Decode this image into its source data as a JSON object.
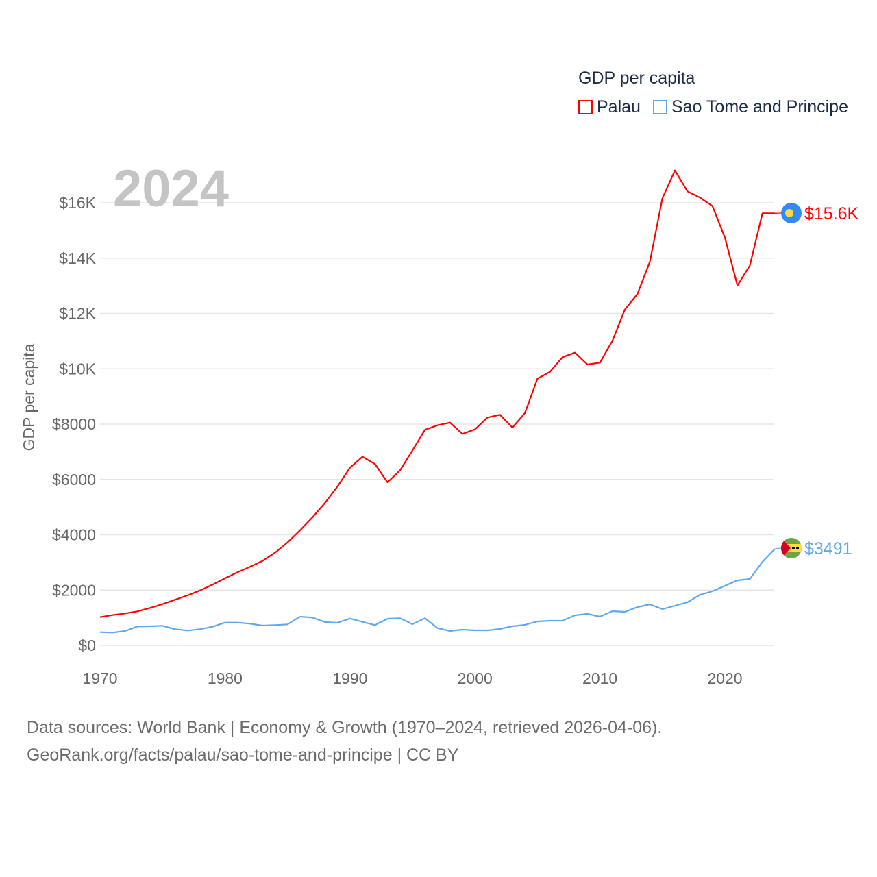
{
  "legend": {
    "title": "GDP per capita",
    "items": [
      {
        "label": "Palau",
        "color": "#ff0000"
      },
      {
        "label": "Sao Tome and Principe",
        "color": "#5ea8ee"
      }
    ]
  },
  "year_label": "2024",
  "footer": {
    "line1": "Data sources: World Bank | Economy & Growth (1970–2024, retrieved 2026-04-06).",
    "line2": "GeoRank.org/facts/palau/sao-tome-and-principe | CC BY"
  },
  "chart_data": {
    "type": "line",
    "title": "GDP per capita",
    "xlabel": "",
    "ylabel": "GDP per capita",
    "xlim": [
      1970,
      2024
    ],
    "ylim": [
      0,
      17500
    ],
    "grid": true,
    "legend_position": "top-right",
    "x_ticks": [
      1970,
      1980,
      1990,
      2000,
      2010,
      2020
    ],
    "x_tick_labels": [
      "1970",
      "1980",
      "1990",
      "2000",
      "2010",
      "2020"
    ],
    "y_ticks": [
      0,
      2000,
      4000,
      6000,
      8000,
      10000,
      12000,
      14000,
      16000
    ],
    "y_tick_labels": [
      "$0",
      "$2000",
      "$4000",
      "$6000",
      "$8000",
      "$10K",
      "$12K",
      "$14K",
      "$16K"
    ],
    "x": [
      1970,
      1971,
      1972,
      1973,
      1974,
      1975,
      1976,
      1977,
      1978,
      1979,
      1980,
      1981,
      1982,
      1983,
      1984,
      1985,
      1986,
      1987,
      1988,
      1989,
      1990,
      1991,
      1992,
      1993,
      1994,
      1995,
      1996,
      1997,
      1998,
      1999,
      2000,
      2001,
      2002,
      2003,
      2004,
      2005,
      2006,
      2007,
      2008,
      2009,
      2010,
      2011,
      2012,
      2013,
      2014,
      2015,
      2016,
      2017,
      2018,
      2019,
      2020,
      2021,
      2022,
      2023,
      2024
    ],
    "series": [
      {
        "name": "Palau",
        "color": "#ff0000",
        "end_label": "$15.6K",
        "flag": "palau-flag",
        "values": [
          1023,
          1098,
          1156,
          1230,
          1354,
          1494,
          1651,
          1808,
          1989,
          2196,
          2427,
          2642,
          2840,
          3055,
          3352,
          3723,
          4161,
          4632,
          5152,
          5746,
          6424,
          6820,
          6556,
          5895,
          6325,
          7052,
          7794,
          7958,
          8057,
          7645,
          7810,
          8240,
          8339,
          7876,
          8404,
          9642,
          9890,
          10419,
          10584,
          10155,
          10221,
          11014,
          12144,
          12706,
          13878,
          16166,
          17172,
          16413,
          16190,
          15884,
          14744,
          13010,
          13738,
          15620,
          15620
        ]
      },
      {
        "name": "Sao Tome and Principe",
        "color": "#5ea8ee",
        "end_label": "$3491",
        "flag": "sao-tome-flag",
        "values": [
          479,
          462,
          520,
          686,
          693,
          710,
          586,
          537,
          586,
          677,
          826,
          826,
          785,
          718,
          735,
          760,
          1040,
          1007,
          842,
          817,
          974,
          850,
          735,
          966,
          983,
          768,
          983,
          627,
          520,
          570,
          545,
          545,
          595,
          693,
          743,
          867,
          892,
          892,
          1090,
          1139,
          1040,
          1238,
          1214,
          1387,
          1486,
          1313,
          1437,
          1560,
          1833,
          1957,
          2155,
          2353,
          2402,
          3022,
          3491
        ]
      }
    ]
  }
}
